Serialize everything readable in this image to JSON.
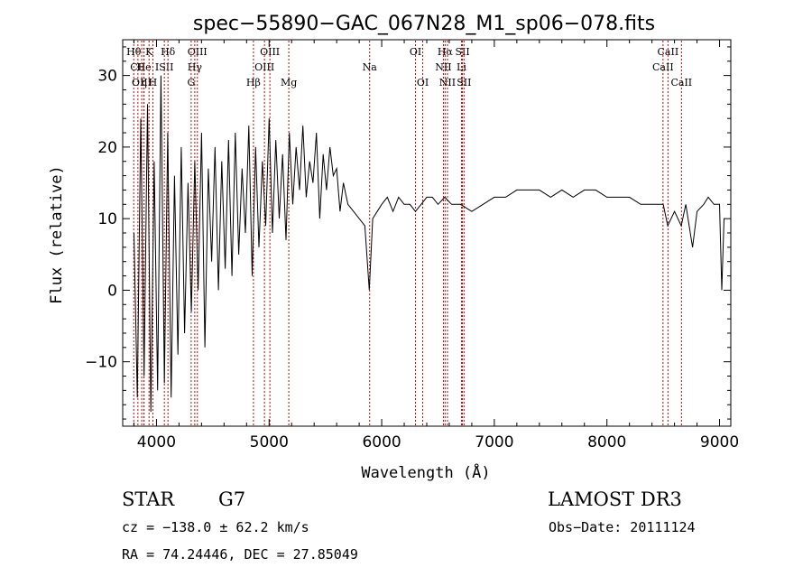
{
  "chart_data": {
    "type": "line",
    "title": "spec−55890−GAC_067N28_M1_sp06−078.fits",
    "xlabel": "Wavelength (Å)",
    "ylabel": "Flux (relative)",
    "xlim": [
      3700,
      9100
    ],
    "ylim": [
      -19,
      35
    ],
    "xticks": [
      4000,
      5000,
      6000,
      7000,
      8000,
      9000
    ],
    "xtick_labels": [
      "4000",
      "5000",
      "6000",
      "7000",
      "8000",
      "9000"
    ],
    "yticks": [
      -10,
      0,
      10,
      20,
      30
    ],
    "ytick_labels": [
      "−10",
      "0",
      "10",
      "20",
      "30"
    ],
    "grid": false,
    "legend": "none",
    "line_color": "#000000",
    "marker_color": "#cc0000",
    "series": [
      {
        "x": [
          3800,
          3830,
          3860,
          3890,
          3920,
          3950,
          3980,
          4010,
          4040,
          4070,
          4100,
          4130,
          4160,
          4190,
          4220,
          4250,
          4280,
          4310,
          4340,
          4370,
          4400,
          4430,
          4460,
          4490,
          4520,
          4550,
          4580,
          4610,
          4640,
          4670,
          4700,
          4730,
          4760,
          4790,
          4820,
          4850,
          4880,
          4910,
          4940,
          4970,
          5000,
          5030,
          5060,
          5090,
          5120,
          5150,
          5180,
          5210,
          5240,
          5270,
          5300,
          5330,
          5360,
          5390,
          5420,
          5450,
          5480,
          5510,
          5540,
          5570,
          5600,
          5630,
          5660,
          5700,
          5750,
          5800,
          5850,
          5890,
          5920,
          5960,
          6000,
          6050,
          6100,
          6150,
          6200,
          6250,
          6300,
          6350,
          6400,
          6450,
          6500,
          6560,
          6620,
          6700,
          6800,
          6900,
          7000,
          7100,
          7200,
          7300,
          7400,
          7500,
          7600,
          7700,
          7800,
          7900,
          8000,
          8100,
          8200,
          8300,
          8400,
          8500,
          8540,
          8600,
          8660,
          8700,
          8760,
          8800,
          8860,
          8900,
          8950,
          9000,
          9020,
          9040
        ],
        "y": [
          8,
          -15,
          24,
          -12,
          26,
          -17,
          18,
          -14,
          30,
          -13,
          22,
          -15,
          16,
          -9,
          20,
          -6,
          15,
          -3,
          18,
          0,
          22,
          -8,
          17,
          4,
          20,
          0,
          18,
          3,
          21,
          2,
          22,
          5,
          17,
          8,
          23,
          2,
          20,
          6,
          18,
          9,
          24,
          8,
          21,
          10,
          19,
          7,
          22,
          12,
          20,
          14,
          23,
          13,
          18,
          15,
          22,
          10,
          19,
          14,
          20,
          16,
          17,
          11,
          15,
          12,
          11,
          10,
          9,
          0,
          10,
          11,
          12,
          13,
          11,
          13,
          12,
          12,
          11,
          12,
          13,
          13,
          12,
          13,
          12,
          12,
          11,
          12,
          13,
          13,
          14,
          14,
          14,
          13,
          14,
          13,
          14,
          14,
          13,
          13,
          13,
          12,
          12,
          12,
          9,
          11,
          9,
          12,
          6,
          11,
          12,
          13,
          12,
          12,
          0,
          10
        ]
      }
    ],
    "line_markers": [
      {
        "label": "Hθ",
        "x": 3798,
        "row": 1
      },
      {
        "label": "CII",
        "x": 3835,
        "row": 2
      },
      {
        "label": "OIII",
        "x": 3869,
        "row": 3
      },
      {
        "label": "He",
        "x": 3889,
        "row": 2
      },
      {
        "label": "η",
        "x": 3889,
        "row": 3
      },
      {
        "label": "K",
        "x": 3934,
        "row": 1
      },
      {
        "label": "H",
        "x": 3968,
        "row": 3
      },
      {
        "label": "ISII",
        "x": 4070,
        "row": 2
      },
      {
        "label": "Hδ",
        "x": 4102,
        "row": 1
      },
      {
        "label": "OIII",
        "x": 4363,
        "row": 1
      },
      {
        "label": "Hγ",
        "x": 4340,
        "row": 2
      },
      {
        "label": "G",
        "x": 4308,
        "row": 3
      },
      {
        "label": "Hβ",
        "x": 4861,
        "row": 3
      },
      {
        "label": "OIII",
        "x": 5007,
        "row": 1
      },
      {
        "label": "OIII",
        "x": 4959,
        "row": 2
      },
      {
        "label": "Mg",
        "x": 5175,
        "row": 3
      },
      {
        "label": "Na",
        "x": 5893,
        "row": 2
      },
      {
        "label": "OI",
        "x": 6300,
        "row": 1
      },
      {
        "label": "OI",
        "x": 6364,
        "row": 3
      },
      {
        "label": "Hα",
        "x": 6563,
        "row": 1
      },
      {
        "label": "NII",
        "x": 6548,
        "row": 2
      },
      {
        "label": "NII",
        "x": 6584,
        "row": 3
      },
      {
        "label": "SII",
        "x": 6717,
        "row": 1
      },
      {
        "label": "Li",
        "x": 6708,
        "row": 2
      },
      {
        "label": "SII",
        "x": 6731,
        "row": 3
      },
      {
        "label": "CaII",
        "x": 8542,
        "row": 1
      },
      {
        "label": "CaII",
        "x": 8498,
        "row": 2
      },
      {
        "label": "CaII",
        "x": 8662,
        "row": 3
      }
    ]
  },
  "info": {
    "object_class": "STAR",
    "subclass": "G7",
    "survey": "LAMOST DR3",
    "cz": "cz = −138.0 ± 62.2 km/s",
    "obs_date": "Obs−Date: 20111124",
    "coords": "RA =  74.24446, DEC =  27.85049"
  }
}
